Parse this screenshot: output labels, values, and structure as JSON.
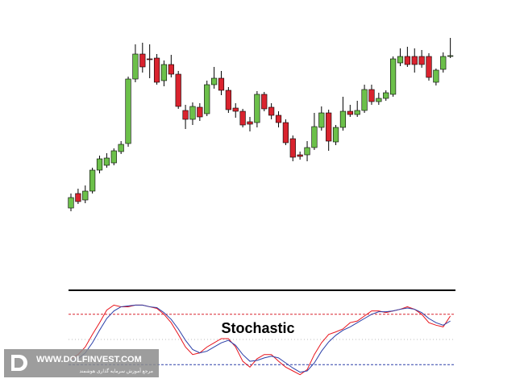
{
  "chart_data": [
    {
      "type": "candlestick",
      "open": [
        42,
        60,
        52,
        63,
        89,
        95,
        98,
        112,
        122,
        202,
        233,
        227,
        228,
        200,
        220,
        208,
        163,
        152,
        167,
        159,
        195,
        203,
        188,
        166,
        162,
        149,
        148,
        183,
        167,
        157,
        148,
        128,
        108,
        108,
        117,
        142,
        160,
        124,
        142,
        162,
        158,
        163,
        189,
        174,
        178,
        183,
        222,
        230,
        230,
        230,
        230,
        198,
        214,
        230
      ],
      "high": [
        60,
        66,
        70,
        92,
        107,
        110,
        116,
        125,
        205,
        245,
        247,
        245,
        233,
        225,
        232,
        212,
        170,
        173,
        172,
        200,
        217,
        212,
        192,
        172,
        165,
        155,
        187,
        186,
        172,
        162,
        152,
        132,
        112,
        125,
        160,
        168,
        164,
        145,
        180,
        170,
        175,
        195,
        195,
        185,
        188,
        230,
        240,
        242,
        240,
        238,
        234,
        215,
        235,
        253
      ],
      "low": [
        38,
        47,
        48,
        60,
        85,
        92,
        95,
        109,
        118,
        198,
        210,
        203,
        195,
        193,
        204,
        165,
        140,
        145,
        150,
        156,
        190,
        182,
        160,
        154,
        142,
        137,
        142,
        162,
        152,
        142,
        120,
        100,
        102,
        100,
        114,
        138,
        113,
        120,
        138,
        155,
        155,
        160,
        170,
        170,
        175,
        180,
        218,
        217,
        210,
        216,
        200,
        194,
        210,
        228
      ],
      "close": [
        55,
        50,
        63,
        89,
        103,
        104,
        113,
        121,
        202,
        233,
        217,
        226,
        198,
        220,
        208,
        168,
        152,
        168,
        155,
        195,
        203,
        188,
        164,
        162,
        145,
        146,
        183,
        165,
        157,
        148,
        123,
        105,
        106,
        117,
        143,
        160,
        125,
        142,
        162,
        158,
        163,
        189,
        174,
        178,
        185,
        227,
        230,
        220,
        220,
        220,
        204,
        213,
        230,
        231
      ],
      "up_color": "#6cc04a",
      "down_color": "#d9232e",
      "ylim": [
        30,
        260
      ]
    },
    {
      "type": "line",
      "title": "Stochastic",
      "series": [
        {
          "color": "#e8141c",
          "values": [
            27,
            32,
            41,
            56,
            70,
            85,
            91,
            89,
            89,
            91,
            91,
            89,
            87,
            80,
            70,
            56,
            41,
            32,
            34,
            41,
            46,
            51,
            51,
            41,
            24,
            17,
            27,
            32,
            32,
            24,
            17,
            12.5,
            8,
            14,
            32,
            46,
            56,
            59,
            62.5,
            70,
            72,
            78,
            84,
            84,
            82,
            84,
            86,
            89,
            86,
            80,
            70,
            67,
            65,
            78
          ]
        },
        {
          "color": "#2b3fa8",
          "values": [
            24,
            27,
            34,
            46,
            61,
            75,
            84,
            89,
            90,
            91,
            91,
            89,
            88,
            82,
            74,
            62.5,
            49,
            38,
            34,
            36,
            41,
            46,
            49,
            43,
            32,
            24,
            25,
            28,
            30,
            28,
            22,
            16,
            11,
            12.5,
            22,
            36,
            47,
            55,
            61,
            65,
            70,
            75,
            80,
            83,
            83,
            84,
            86,
            87.5,
            86,
            82,
            75,
            70,
            67,
            72
          ]
        }
      ],
      "levels": [
        80,
        50,
        20
      ],
      "level_colors": [
        "#d9232e",
        "#bbbbbb",
        "#2b3fa8"
      ],
      "ylim": [
        0,
        100
      ]
    }
  ],
  "watermark": {
    "site": "WWW.DOLFINVEST.COM",
    "tagline": "مرجع آموزش سرمایه گذاری هوشمند"
  }
}
